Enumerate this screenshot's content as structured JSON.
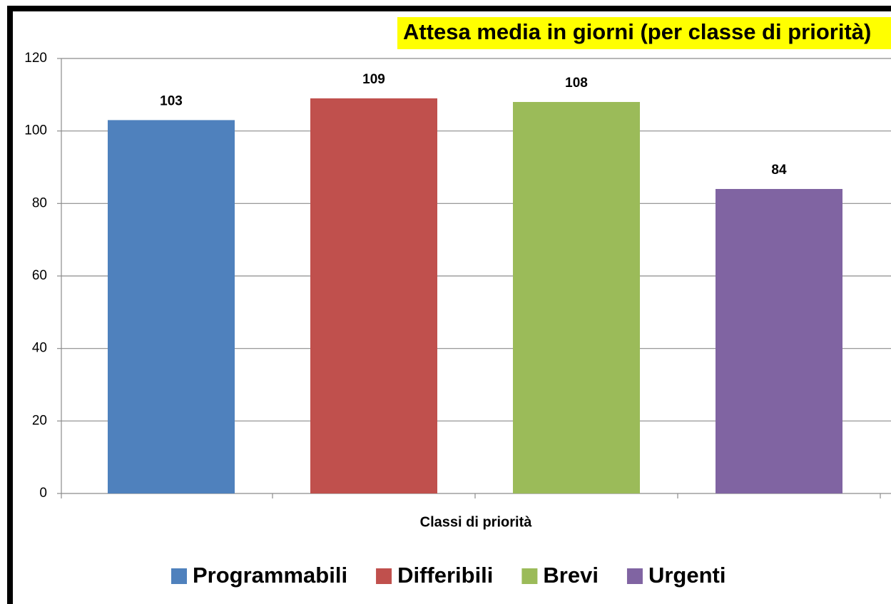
{
  "chart_data": {
    "type": "bar",
    "title": "Attesa media in giorni (per classe di priorità)",
    "x_label": "Classi di priorità",
    "categories": [
      "Programmabili",
      "Differibili",
      "Brevi",
      "Urgenti"
    ],
    "values": [
      103,
      109,
      108,
      84
    ],
    "colors": [
      "#4f81bd",
      "#c0504d",
      "#9bbb59",
      "#8064a2"
    ],
    "ylim": [
      0,
      120
    ],
    "yticks": [
      0,
      20,
      40,
      60,
      80,
      100,
      120
    ],
    "grid": true,
    "legend": "bottom"
  }
}
